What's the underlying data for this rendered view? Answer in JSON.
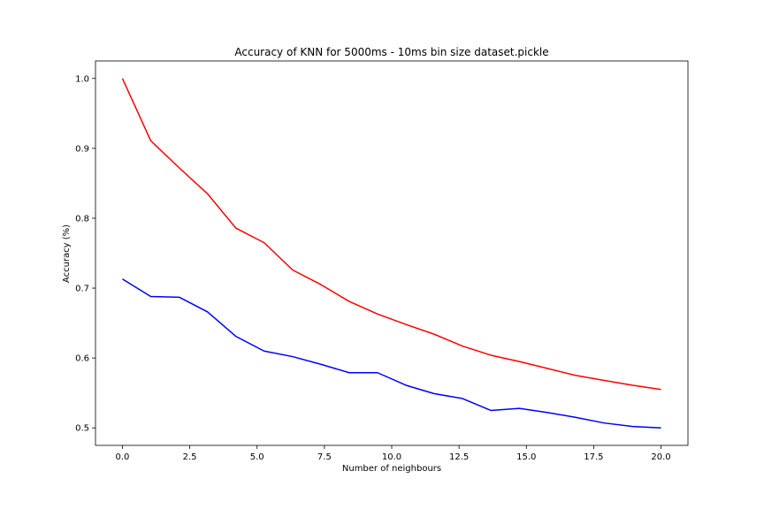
{
  "chart_data": {
    "type": "line",
    "title": "Accuracy of KNN for 5000ms - 10ms bin size dataset.pickle",
    "xlabel": "Number of neighbours",
    "ylabel": "Accuracy (%)",
    "xlim": [
      -1.0,
      21.0
    ],
    "ylim": [
      0.475,
      1.025
    ],
    "xticks": [
      0.0,
      2.5,
      5.0,
      7.5,
      10.0,
      12.5,
      15.0,
      17.5,
      20.0
    ],
    "xtick_labels": [
      "0.0",
      "2.5",
      "5.0",
      "7.5",
      "10.0",
      "12.5",
      "15.0",
      "17.5",
      "20.0"
    ],
    "yticks": [
      0.5,
      0.6,
      0.7,
      0.8,
      0.9,
      1.0
    ],
    "ytick_labels": [
      "0.5",
      "0.6",
      "0.7",
      "0.8",
      "0.9",
      "1.0"
    ],
    "grid": false,
    "x": [
      0.0,
      1.05,
      2.11,
      3.16,
      4.21,
      5.26,
      6.32,
      7.37,
      8.42,
      9.47,
      10.53,
      11.58,
      12.63,
      13.68,
      14.74,
      15.79,
      16.84,
      17.89,
      18.95,
      20.0
    ],
    "series": [
      {
        "color": "#ff0000",
        "values": [
          1.0,
          0.911,
          0.872,
          0.835,
          0.786,
          0.765,
          0.726,
          0.705,
          0.681,
          0.663,
          0.648,
          0.634,
          0.617,
          0.604,
          0.595,
          0.585,
          0.575,
          0.568,
          0.561,
          0.555
        ]
      },
      {
        "color": "#0000ff",
        "values": [
          0.713,
          0.688,
          0.687,
          0.666,
          0.631,
          0.61,
          0.602,
          0.591,
          0.579,
          0.579,
          0.561,
          0.549,
          0.542,
          0.525,
          0.528,
          0.522,
          0.515,
          0.507,
          0.502,
          0.5
        ]
      }
    ]
  }
}
